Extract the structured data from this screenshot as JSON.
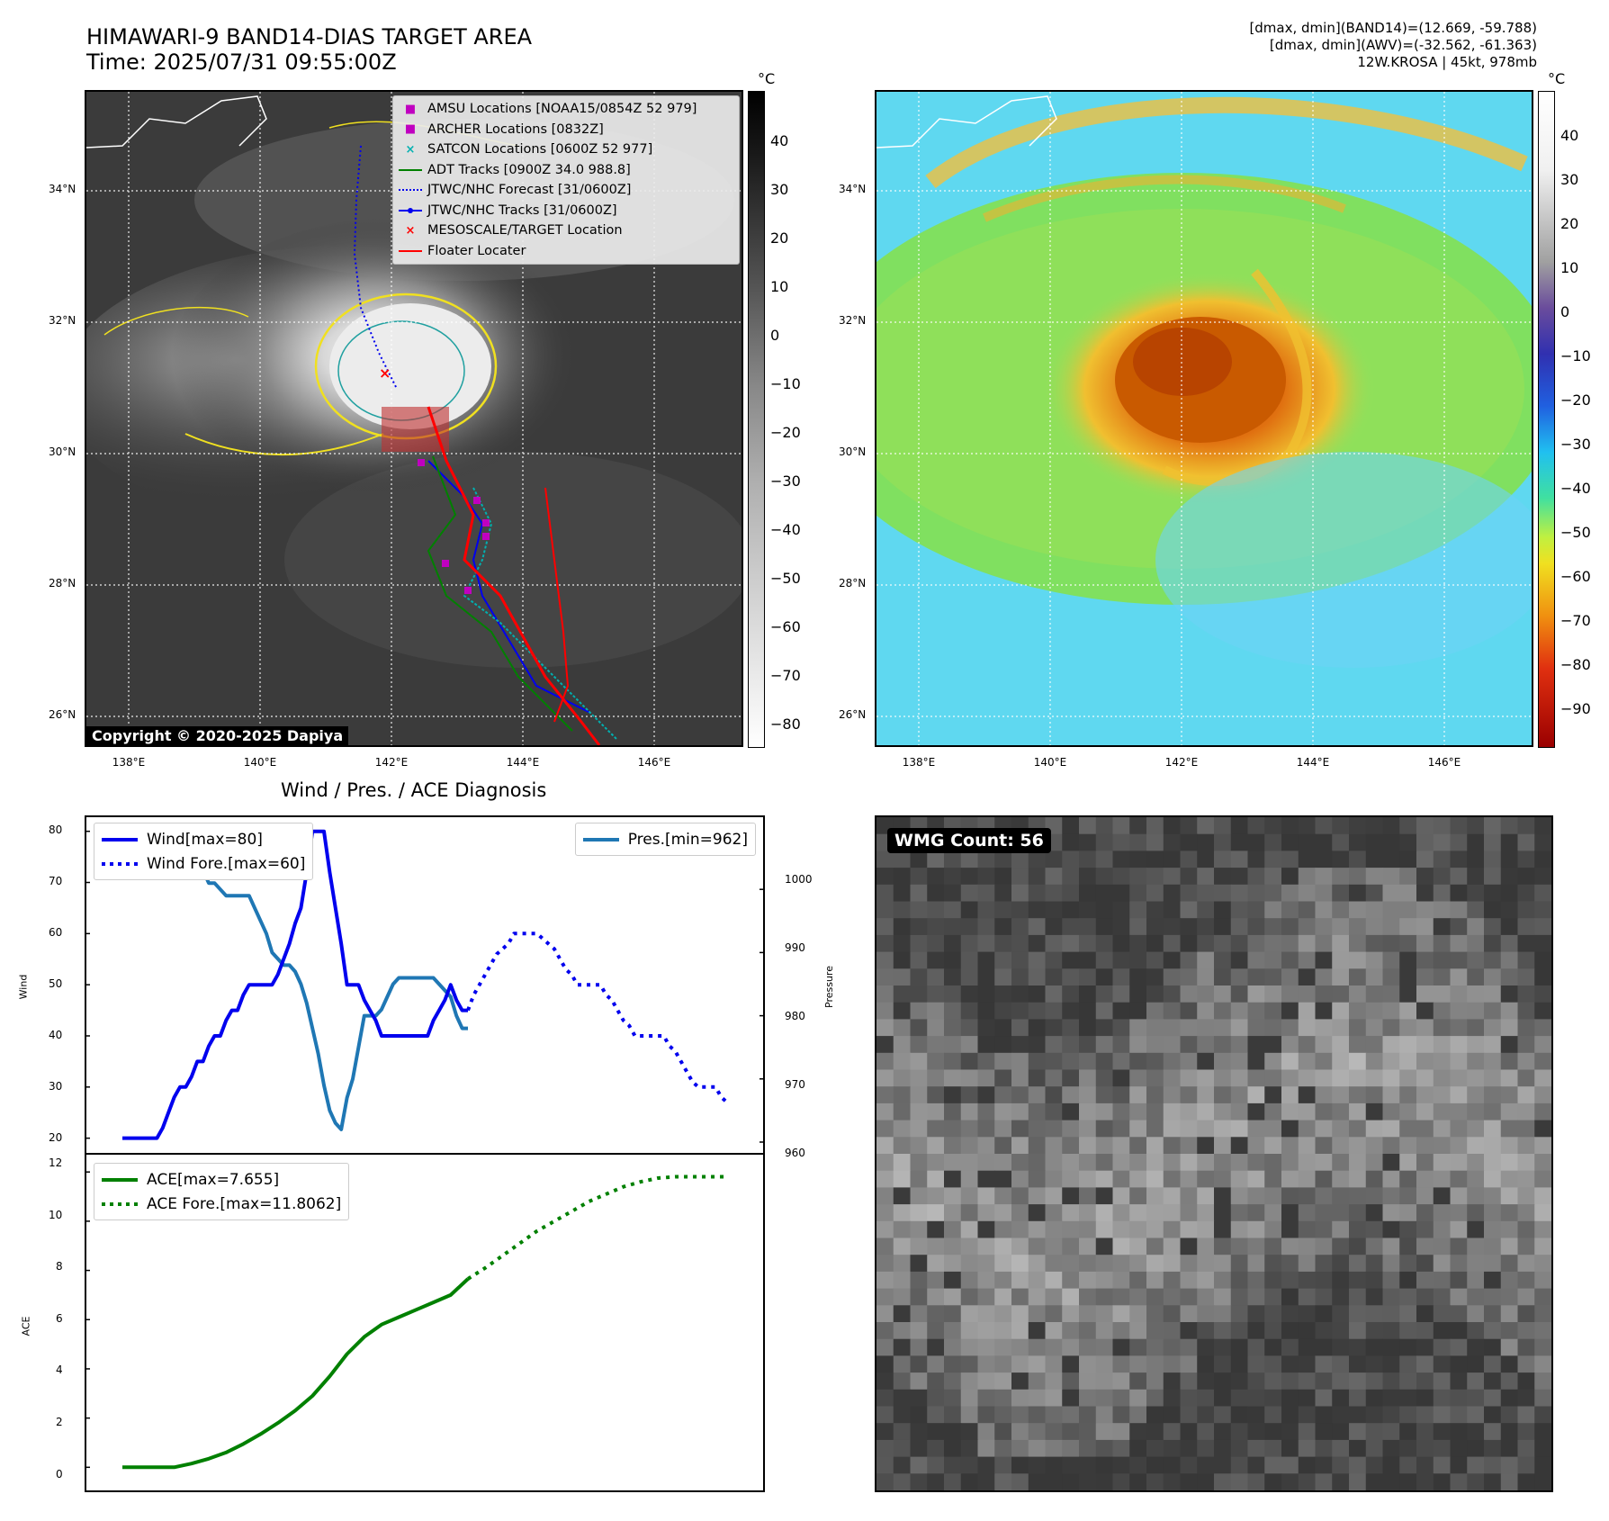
{
  "header": {
    "title_line1": "HIMAWARI-9 BAND14-DIAS TARGET AREA",
    "title_line2": "Time: 2025/07/31 09:55:00Z",
    "info_line1": "[dmax, dmin](BAND14)=(12.669, -59.788)",
    "info_line2": "[dmax, dmin](AWV)=(-32.562, -61.363)",
    "info_line3": "12W.KROSA | 45kt, 978mb"
  },
  "map_axes": {
    "lat_labels": [
      "34°N",
      "32°N",
      "30°N",
      "28°N",
      "26°N"
    ],
    "lon_labels": [
      "138°E",
      "140°E",
      "142°E",
      "144°E",
      "146°E"
    ]
  },
  "ir_panel": {
    "colorbar_unit": "°C",
    "colorbar_ticks": [
      "40",
      "30",
      "20",
      "10",
      "0",
      "−10",
      "−20",
      "−30",
      "−40",
      "−50",
      "−60",
      "−70",
      "−80"
    ],
    "copyright": "Copyright © 2020-2025 Dapiya",
    "legend": [
      {
        "label": "AMSU Locations [NOAA15/0854Z 52 979]",
        "symbol": "■",
        "color": "#c000c0"
      },
      {
        "label": "ARCHER Locations [0832Z]",
        "symbol": "■",
        "color": "#c000c0"
      },
      {
        "label": "SATCON Locations [0600Z 52 977]",
        "symbol": "×",
        "color": "#00b0b0"
      },
      {
        "label": "ADT Tracks [0900Z 34.0 988.8]",
        "symbol": "line",
        "color": "#008000"
      },
      {
        "label": "JTWC/NHC Forecast [31/0600Z]",
        "symbol": "dotted",
        "color": "#0000ff"
      },
      {
        "label": "JTWC/NHC Tracks [31/0600Z]",
        "symbol": "dotline",
        "color": "#0000ff"
      },
      {
        "label": "MESOSCALE/TARGET Location",
        "symbol": "×",
        "color": "#ff0000"
      },
      {
        "label": "Floater Locater",
        "symbol": "line",
        "color": "#ff0000"
      }
    ]
  },
  "awv_panel": {
    "colorbar_unit": "°C",
    "colorbar_ticks": [
      "40",
      "30",
      "20",
      "10",
      "0",
      "−10",
      "−20",
      "−30",
      "−40",
      "−50",
      "−60",
      "−70",
      "−80",
      "−90"
    ]
  },
  "wmg_panel": {
    "label": "WMG Count: 56"
  },
  "diagnosis": {
    "title": "Wind / Pres. / ACE Diagnosis",
    "wind_ylabel": "Wind",
    "pres_ylabel": "Pressure",
    "ace_ylabel": "ACE",
    "wind_legend": [
      "Wind[max=80]",
      "Wind Fore.[max=60]"
    ],
    "pres_legend": [
      "Pres.[min=962]"
    ],
    "ace_legend": [
      "ACE[max=7.655]",
      "ACE Fore.[max=11.8062]"
    ],
    "wind_ticks": [
      "80",
      "70",
      "60",
      "50",
      "40",
      "30",
      "20"
    ],
    "pres_ticks": [
      "1000",
      "990",
      "980",
      "970",
      "960"
    ],
    "ace_ticks": [
      "12",
      "10",
      "8",
      "6",
      "4",
      "2",
      "0"
    ]
  },
  "chart_data": [
    {
      "type": "line",
      "title": "Wind / Pres. / ACE Diagnosis",
      "ylabel": "Wind",
      "ylim": [
        18,
        81
      ],
      "series": [
        {
          "name": "Wind[max=80]",
          "color": "#0000ee",
          "style": "solid",
          "x": [
            0,
            1,
            2,
            3,
            4,
            5,
            6,
            7,
            8,
            9,
            10,
            11,
            12,
            13,
            14,
            15,
            16,
            17,
            18,
            19,
            20,
            21,
            22,
            23,
            24,
            25,
            26,
            27,
            28,
            29,
            30,
            31,
            32,
            33,
            34,
            35,
            36,
            37,
            38,
            39,
            40,
            41,
            42,
            43,
            44,
            45,
            46,
            47,
            48,
            49,
            50,
            51,
            52,
            53,
            54,
            55,
            56,
            57,
            58,
            59,
            60
          ],
          "values": [
            20,
            20,
            20,
            20,
            20,
            20,
            20,
            22,
            25,
            28,
            30,
            30,
            32,
            35,
            35,
            38,
            40,
            40,
            43,
            45,
            45,
            48,
            50,
            50,
            50,
            50,
            50,
            52,
            55,
            58,
            62,
            65,
            72,
            80,
            80,
            80,
            72,
            65,
            58,
            50,
            50,
            50,
            47,
            45,
            43,
            40,
            40,
            40,
            40,
            40,
            40,
            40,
            40,
            40,
            43,
            45,
            47,
            50,
            47,
            45,
            45
          ]
        },
        {
          "name": "Wind Fore.[max=60]",
          "color": "#0000ee",
          "style": "dotted",
          "x": [
            60,
            61,
            62,
            63,
            64,
            65,
            66,
            67,
            68,
            69,
            70,
            71,
            72,
            73,
            74,
            75,
            76,
            77,
            78,
            79,
            80,
            81,
            82,
            83,
            84,
            85,
            86,
            87,
            88,
            89,
            90,
            91,
            92,
            93,
            94,
            95,
            96,
            97,
            98,
            99,
            100,
            101,
            102,
            103,
            104,
            105
          ],
          "values": [
            45,
            48,
            50,
            52,
            54,
            56,
            57,
            58,
            60,
            60,
            60,
            60,
            60,
            59,
            58,
            57,
            55,
            53,
            52,
            50,
            50,
            50,
            50,
            50,
            48,
            47,
            45,
            43,
            42,
            40,
            40,
            40,
            40,
            40,
            40,
            38,
            37,
            35,
            33,
            31,
            30,
            30,
            30,
            30,
            28,
            27
          ]
        }
      ]
    },
    {
      "type": "line",
      "ylabel": "Pressure",
      "ylim": [
        959,
        1010
      ],
      "series": [
        {
          "name": "Pres.[min=962]",
          "color": "#1f77b4",
          "style": "solid",
          "x": [
            0,
            1,
            2,
            3,
            4,
            5,
            6,
            7,
            8,
            9,
            10,
            11,
            12,
            13,
            14,
            15,
            16,
            17,
            18,
            19,
            20,
            21,
            22,
            23,
            24,
            25,
            26,
            27,
            28,
            29,
            30,
            31,
            32,
            33,
            34,
            35,
            36,
            37,
            38,
            39,
            40,
            41,
            42,
            43,
            44,
            45,
            46,
            47,
            48,
            49,
            50,
            51,
            52,
            53,
            54,
            55,
            56,
            57,
            58,
            59,
            60
          ],
          "values": [
            1008,
            1008,
            1008,
            1008,
            1008,
            1008,
            1007,
            1006,
            1005,
            1005,
            1005,
            1004,
            1004,
            1003,
            1003,
            1001,
            1001,
            1000,
            999,
            999,
            999,
            999,
            999,
            997,
            995,
            993,
            990,
            989,
            988,
            988,
            987,
            985,
            982,
            978,
            974,
            969,
            965,
            963,
            962,
            967,
            970,
            975,
            980,
            980,
            980,
            981,
            983,
            985,
            986,
            986,
            986,
            986,
            986,
            986,
            986,
            985,
            984,
            983,
            980,
            978,
            978
          ]
        }
      ]
    },
    {
      "type": "line",
      "ylabel": "ACE",
      "ylim": [
        -0.5,
        12.3
      ],
      "series": [
        {
          "name": "ACE[max=7.655]",
          "color": "#008000",
          "style": "solid",
          "x": [
            0,
            3,
            6,
            9,
            12,
            15,
            18,
            21,
            24,
            27,
            30,
            33,
            36,
            39,
            42,
            45,
            48,
            51,
            54,
            57,
            60
          ],
          "values": [
            0,
            0,
            0,
            0,
            0.15,
            0.35,
            0.6,
            0.95,
            1.35,
            1.8,
            2.3,
            2.9,
            3.7,
            4.6,
            5.3,
            5.8,
            6.1,
            6.4,
            6.7,
            7.0,
            7.655
          ]
        },
        {
          "name": "ACE Fore.[max=11.8062]",
          "color": "#008000",
          "style": "dotted",
          "x": [
            60,
            63,
            66,
            69,
            72,
            75,
            78,
            81,
            84,
            87,
            90,
            93,
            96,
            99,
            102,
            105
          ],
          "values": [
            7.655,
            8.1,
            8.6,
            9.1,
            9.6,
            10.0,
            10.4,
            10.8,
            11.1,
            11.4,
            11.6,
            11.75,
            11.8062,
            11.8062,
            11.8062,
            11.8062
          ]
        }
      ]
    }
  ]
}
